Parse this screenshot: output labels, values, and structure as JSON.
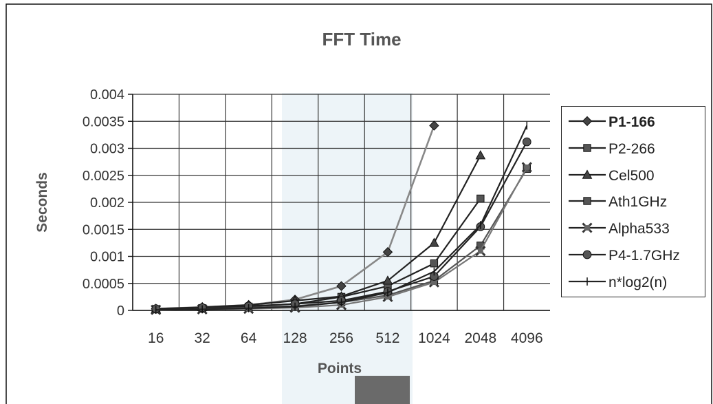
{
  "chart_data": {
    "type": "line",
    "title": "FFT Time",
    "xlabel": "Points",
    "ylabel": "Seconds",
    "categories": [
      "16",
      "32",
      "64",
      "128",
      "256",
      "512",
      "1024",
      "2048",
      "4096"
    ],
    "y_ticks": [
      "0.004",
      "0.0035",
      "0.003",
      "0.0025",
      "0.002",
      "0.0015",
      "0.001",
      "0.0005",
      "0"
    ],
    "ylim": [
      0,
      0.004
    ],
    "grid": true,
    "legend_position": "right",
    "series": [
      {
        "name": "P1-166",
        "marker": "diamond",
        "values": [
          3e-05,
          6e-05,
          0.0001,
          0.0002,
          0.00045,
          0.00108,
          0.00342,
          null,
          null
        ]
      },
      {
        "name": "P2-266",
        "marker": "square",
        "values": [
          2e-05,
          4e-05,
          7e-05,
          0.00012,
          0.00025,
          0.00045,
          0.00087,
          0.00207,
          null
        ]
      },
      {
        "name": "Cel500",
        "marker": "triangle",
        "values": [
          3e-05,
          6e-05,
          0.0001,
          0.00018,
          0.00026,
          0.00055,
          0.00125,
          0.00287,
          null
        ]
      },
      {
        "name": "Ath1GHz",
        "marker": "square",
        "values": [
          2e-05,
          3e-05,
          5e-05,
          8e-05,
          0.00015,
          0.00028,
          0.00055,
          0.0012,
          0.00262
        ]
      },
      {
        "name": "Alpha533",
        "marker": "cross",
        "values": [
          1e-05,
          2e-05,
          3e-05,
          5e-05,
          0.0001,
          0.00025,
          0.00052,
          0.0011,
          0.00265
        ]
      },
      {
        "name": "P4-1.7GHz",
        "marker": "circle",
        "values": [
          3e-05,
          5e-05,
          8e-05,
          0.00012,
          0.00018,
          0.00035,
          0.00063,
          0.00155,
          0.00312
        ]
      },
      {
        "name": "n*log2(n)",
        "marker": "dash",
        "values": [
          1e-05,
          2e-05,
          4e-05,
          7e-05,
          0.00015,
          0.00033,
          0.00072,
          0.00158,
          0.00342
        ]
      }
    ],
    "series_colors": [
      "#222222",
      "#222222",
      "#222222",
      "#222222",
      "#222222",
      "#222222",
      "#222222"
    ],
    "background_tint": "#edf4f8"
  }
}
